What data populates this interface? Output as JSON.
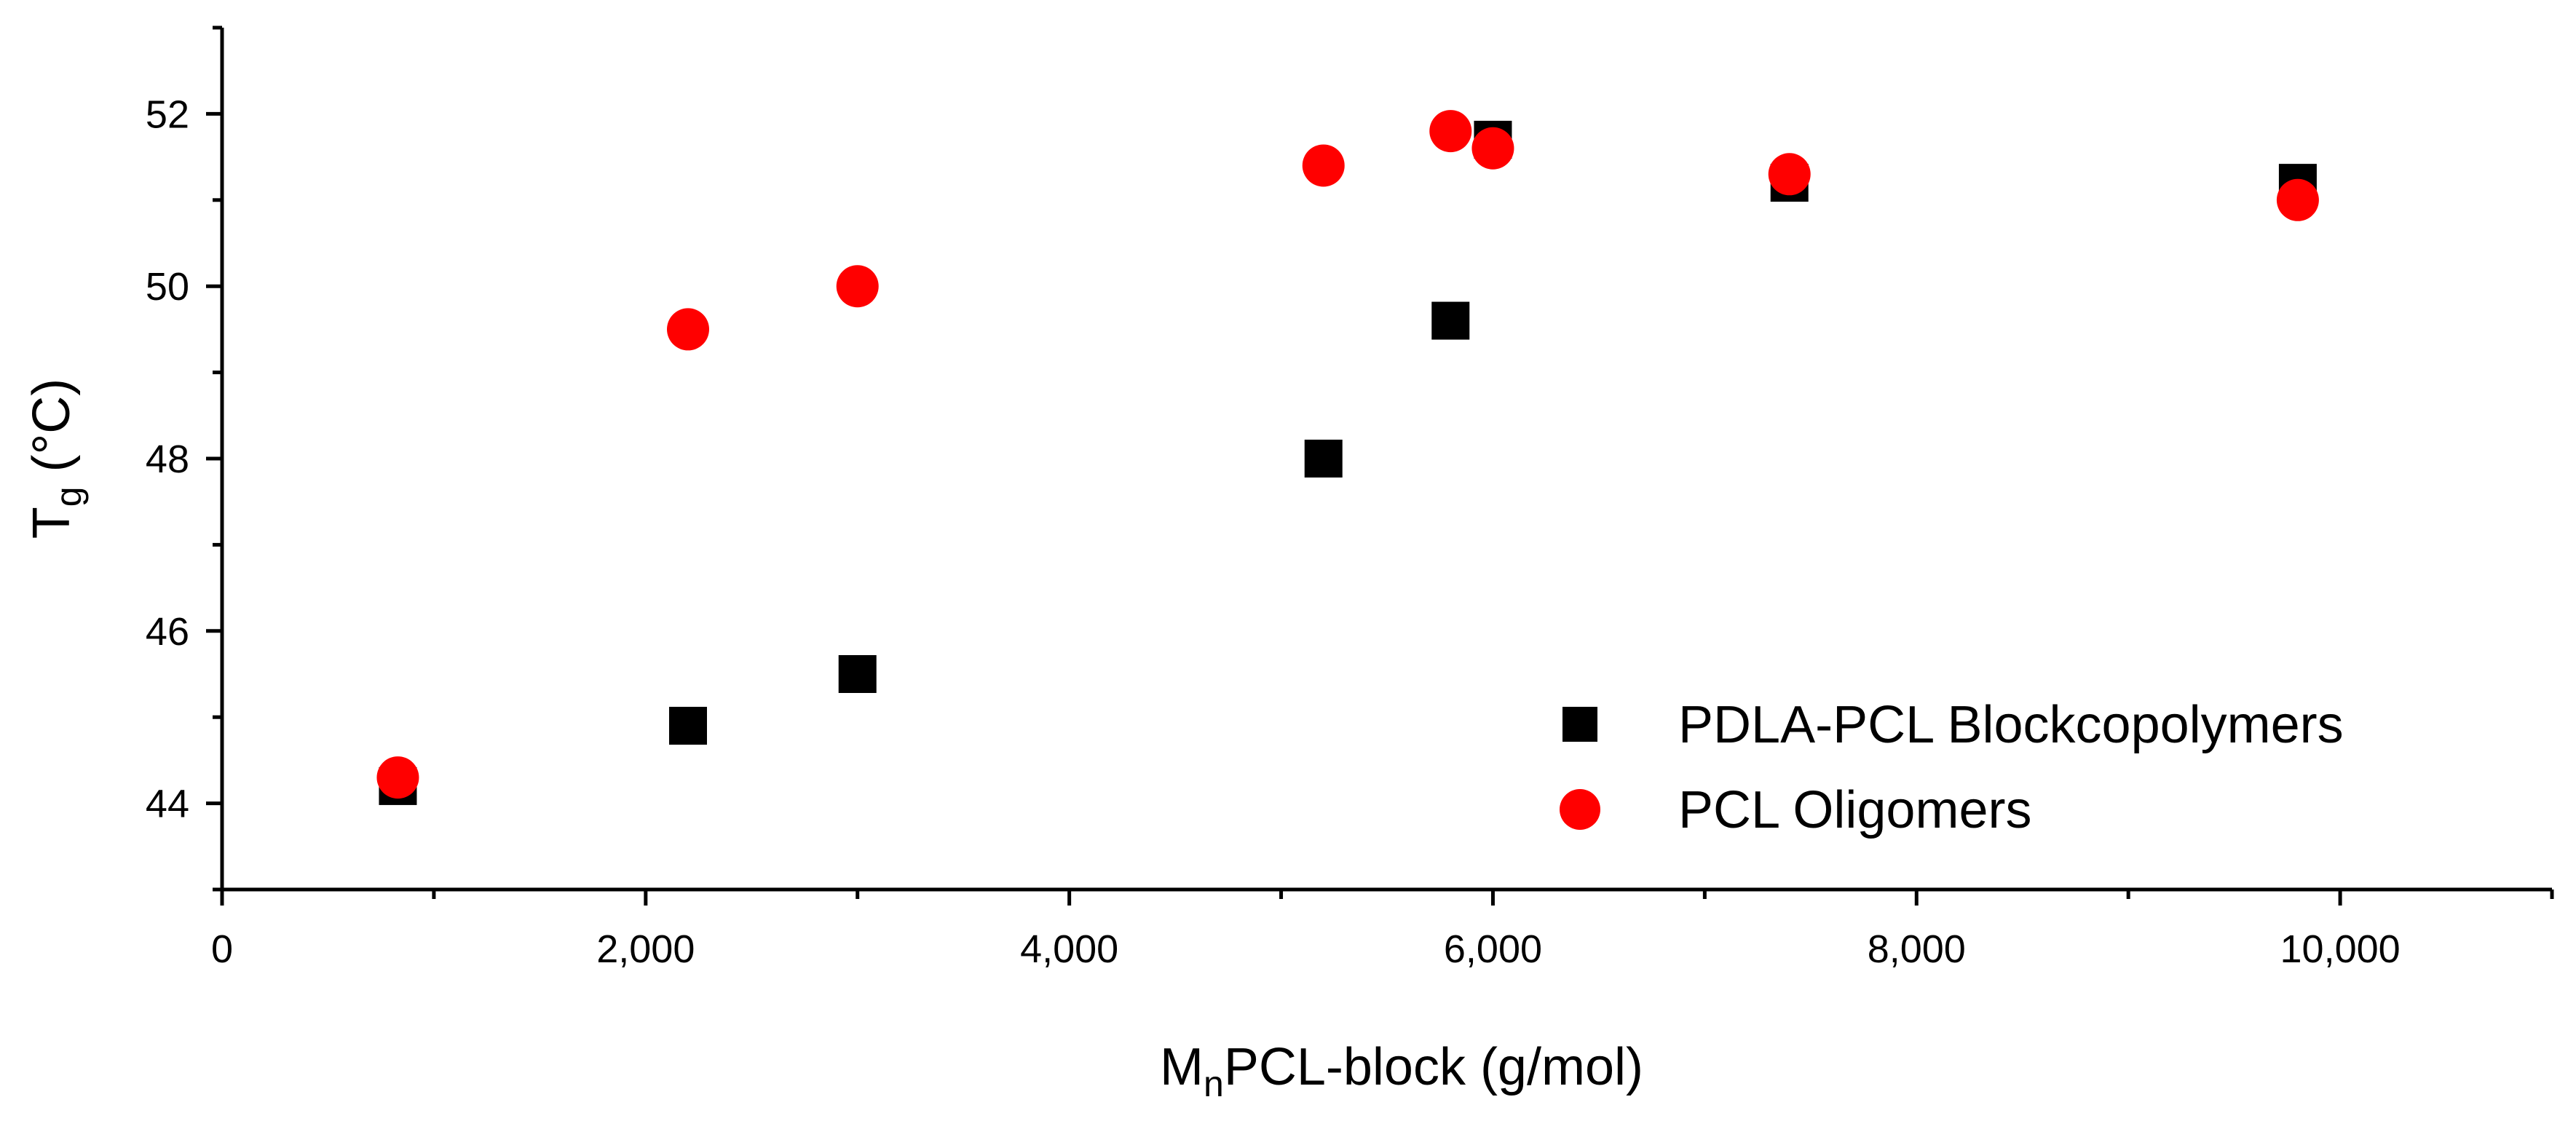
{
  "chart_data": {
    "type": "scatter",
    "title": "",
    "xlabel": {
      "main": "M",
      "sub": "n",
      "rest": "PCL-block (g/mol)"
    },
    "ylabel": {
      "main": "T",
      "sub": "g",
      "rest": " (°C)"
    },
    "xlim": [
      0,
      11000
    ],
    "ylim": [
      43,
      53
    ],
    "x_ticks": [
      0,
      2000,
      4000,
      6000,
      8000,
      10000
    ],
    "x_tick_labels": [
      "0",
      "2,000",
      "4,000",
      "6,000",
      "8,000",
      "10,000"
    ],
    "x_minor_ticks": [
      1000,
      3000,
      5000,
      7000,
      9000,
      11000
    ],
    "y_ticks": [
      44,
      46,
      48,
      50,
      52
    ],
    "y_tick_labels": [
      "44",
      "46",
      "48",
      "50",
      "52"
    ],
    "y_minor_ticks": [
      43,
      45,
      47,
      49,
      51,
      53
    ],
    "grid": false,
    "legend": "bottom-right",
    "series": [
      {
        "name": "PDLA-PCL Blockcopolymers",
        "marker": "square",
        "color": "#000000",
        "points": [
          {
            "x": 830,
            "y": 44.2
          },
          {
            "x": 2200,
            "y": 44.9
          },
          {
            "x": 3000,
            "y": 45.5
          },
          {
            "x": 5200,
            "y": 48.0
          },
          {
            "x": 5800,
            "y": 49.6
          },
          {
            "x": 6000,
            "y": 51.7
          },
          {
            "x": 7400,
            "y": 51.2
          },
          {
            "x": 9800,
            "y": 51.2
          }
        ]
      },
      {
        "name": "PCL Oligomers",
        "marker": "circle",
        "color": "#ff0000",
        "points": [
          {
            "x": 830,
            "y": 44.3
          },
          {
            "x": 2200,
            "y": 49.5
          },
          {
            "x": 3000,
            "y": 50.0
          },
          {
            "x": 5200,
            "y": 51.4
          },
          {
            "x": 5800,
            "y": 51.8
          },
          {
            "x": 6000,
            "y": 51.6
          },
          {
            "x": 7400,
            "y": 51.3
          },
          {
            "x": 9800,
            "y": 51.0
          }
        ]
      }
    ]
  }
}
